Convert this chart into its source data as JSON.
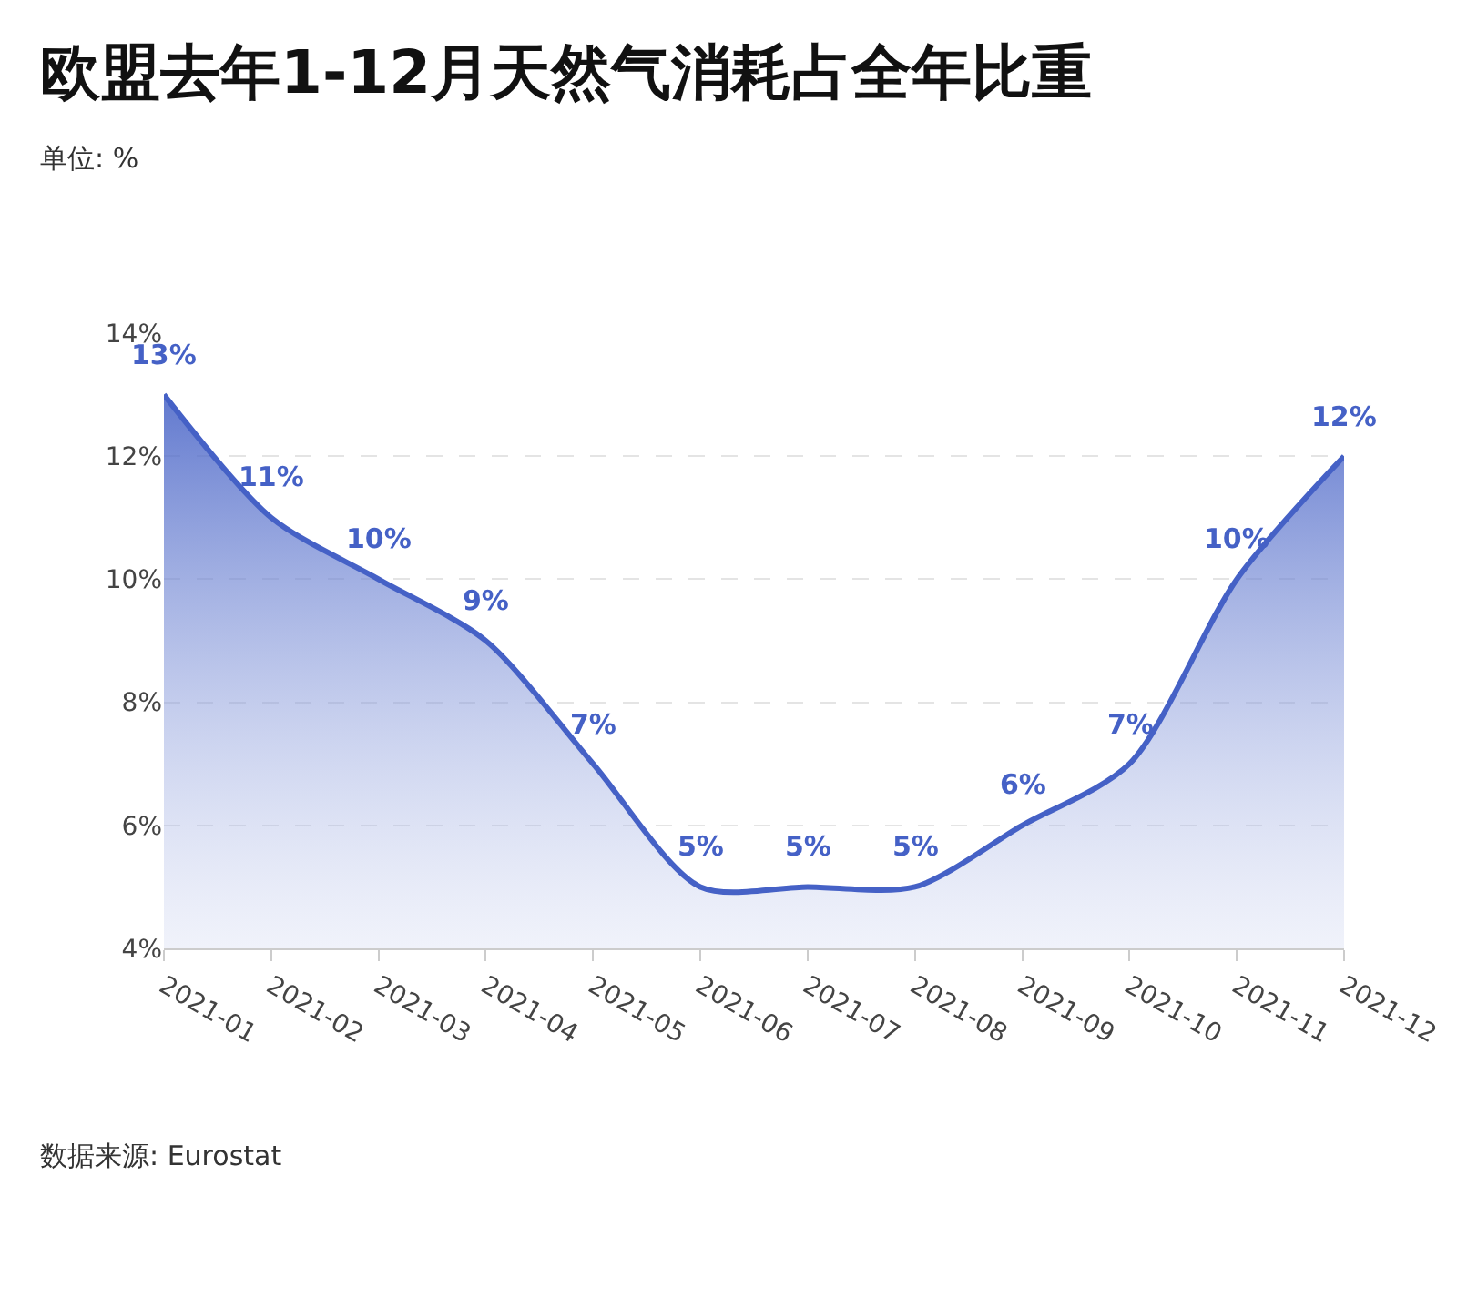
{
  "chart_data": {
    "type": "area",
    "title": "欧盟去年1-12月天然气消耗占全年比重",
    "subtitle": "单位: %",
    "categories": [
      "2021-01",
      "2021-02",
      "2021-03",
      "2021-04",
      "2021-05",
      "2021-06",
      "2021-07",
      "2021-08",
      "2021-09",
      "2021-10",
      "2021-11",
      "2021-12"
    ],
    "series": [
      {
        "color": "#4561c6",
        "values": [
          13,
          11,
          10,
          9,
          7,
          5,
          5,
          5,
          6,
          7,
          10,
          12
        ],
        "value_labels": [
          "13%",
          "11%",
          "10%",
          "9%",
          "7%",
          "5%",
          "5%",
          "5%",
          "6%",
          "7%",
          "10%",
          "12%"
        ]
      }
    ],
    "ylim": [
      4,
      14
    ],
    "yticks": [
      {
        "value": 4,
        "label": "4%"
      },
      {
        "value": 6,
        "label": "6%"
      },
      {
        "value": 8,
        "label": "8%"
      },
      {
        "value": 10,
        "label": "10%"
      },
      {
        "value": 12,
        "label": "12%"
      },
      {
        "value": 14,
        "label": "14%"
      }
    ],
    "grid": "y",
    "marker": "none",
    "line_style": "solid",
    "annotations": [
      "数据来源: Eurostat"
    ]
  }
}
